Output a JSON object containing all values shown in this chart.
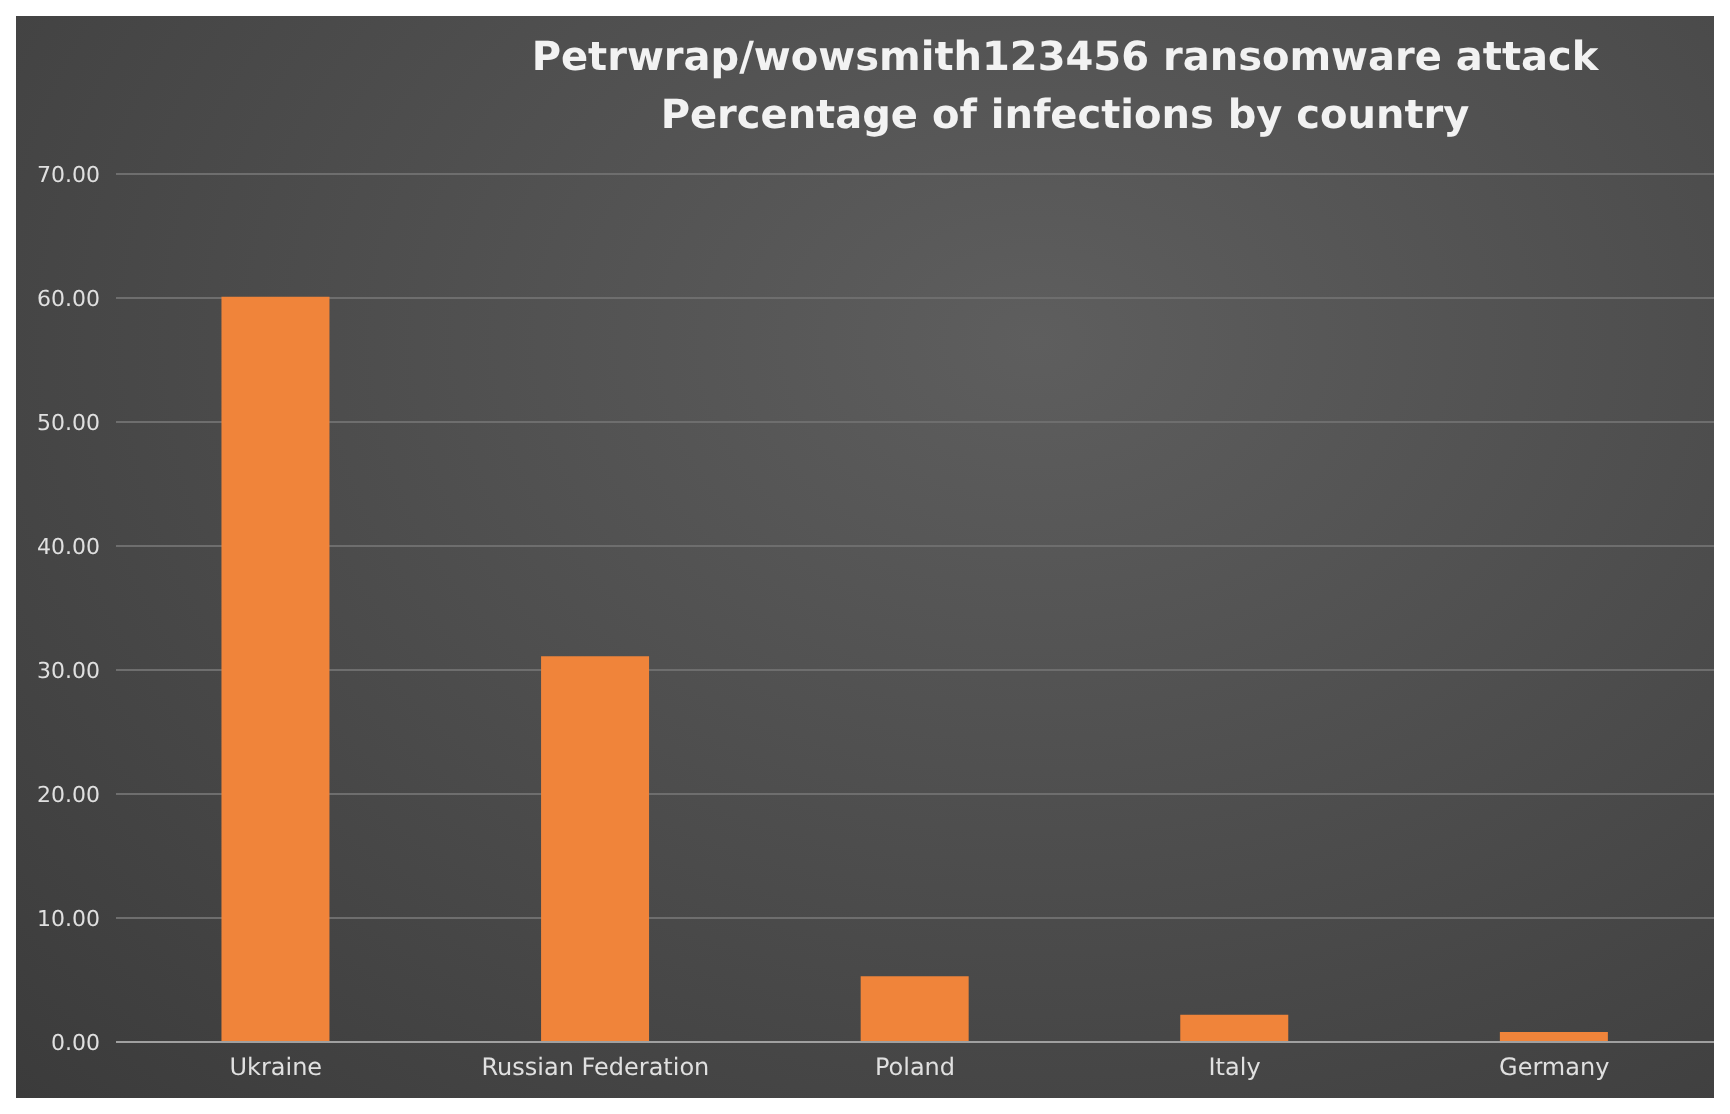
{
  "chart_data": {
    "type": "bar",
    "title": "Petrwrap/wowsmith123456 ransomware attack\nPercentage of infections by country",
    "categories": [
      "Ukraine",
      "Russian Federation",
      "Poland",
      "Italy",
      "Germany"
    ],
    "values": [
      60.1,
      31.1,
      5.3,
      2.2,
      0.8
    ],
    "color": "#f0843a",
    "ylim": [
      0,
      70
    ],
    "yticks": [
      {
        "value": 0,
        "label": "0.00"
      },
      {
        "value": 10,
        "label": "10.00"
      },
      {
        "value": 20,
        "label": "20.00"
      },
      {
        "value": 30,
        "label": "30.00"
      },
      {
        "value": 40,
        "label": "40.00"
      },
      {
        "value": 50,
        "label": "50.00"
      },
      {
        "value": 60,
        "label": "60.00"
      },
      {
        "value": 70,
        "label": "70.00"
      }
    ],
    "grid": "y",
    "legend": false
  }
}
